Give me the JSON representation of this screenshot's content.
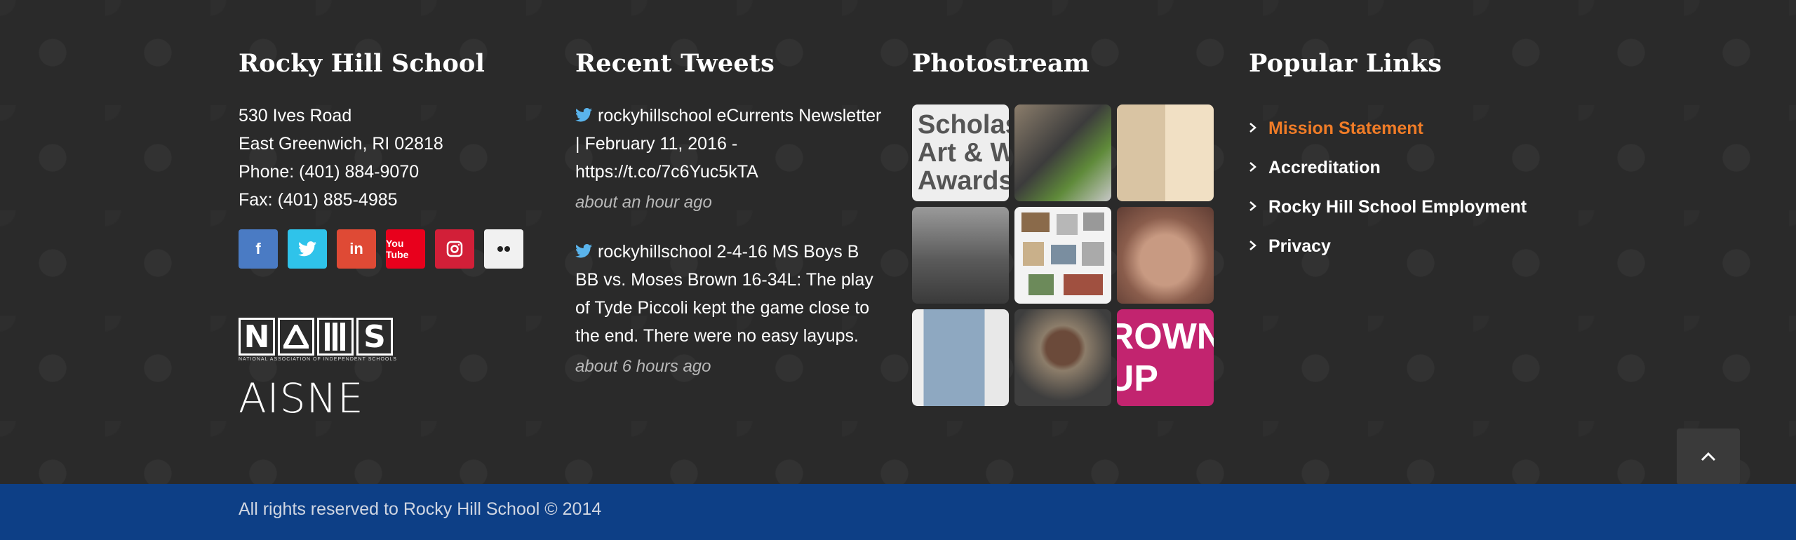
{
  "school": {
    "title": "Rocky Hill School",
    "address": [
      "530 Ives Road",
      "East Greenwich, RI 02818",
      "Phone: (401) 884-9070",
      "Fax: (401) 885-4985"
    ],
    "social": [
      {
        "icon": "facebook-icon",
        "glyph": "f",
        "color": "#4a7bc4"
      },
      {
        "icon": "twitter-icon",
        "glyph": "🐦",
        "color": "#2fc3ea"
      },
      {
        "icon": "linkedin-icon",
        "glyph": "in",
        "color": "#df4a35"
      },
      {
        "icon": "youtube-icon",
        "glyph": "You Tube",
        "color": "#e8001c"
      },
      {
        "icon": "instagram-icon",
        "glyph": "◘",
        "color": "#d21f38"
      },
      {
        "icon": "flickr-icon",
        "glyph": "●●",
        "color": "#f1f1f1"
      }
    ],
    "logos": {
      "nais_letters": [
        "N",
        "A",
        "I",
        "S"
      ],
      "nais_sub": "NATIONAL ASSOCIATION OF INDEPENDENT SCHOOLS",
      "aisne": "AISNE"
    }
  },
  "tweets": {
    "title": "Recent Tweets",
    "items": [
      {
        "text": "rockyhillschool eCurrents Newsletter  |  February 11, 2016 - https://t.co/7c6Yuc5kTA",
        "time": "about an hour ago"
      },
      {
        "text": "rockyhillschool 2-4-16 MS Boys B BB vs. Moses Brown 16-34L: The play of Tyde Piccoli kept the game close to the end. There were no easy layups.",
        "time": "about 6 hours ago"
      }
    ]
  },
  "photostream": {
    "title": "Photostream",
    "photo1_text": "Scholas Art & W Awards",
    "photo9_text": "ROWN UP"
  },
  "popular_links": {
    "title": "Popular Links",
    "items": [
      "Mission Statement",
      "Accreditation",
      "Rocky Hill School Employment",
      "Privacy"
    ],
    "active_color": "#f07c27"
  },
  "back_to_top": "⌃",
  "footer": {
    "copyright": "All rights reserved to Rocky Hill School © 2014",
    "bar_color": "#0d3f86"
  }
}
